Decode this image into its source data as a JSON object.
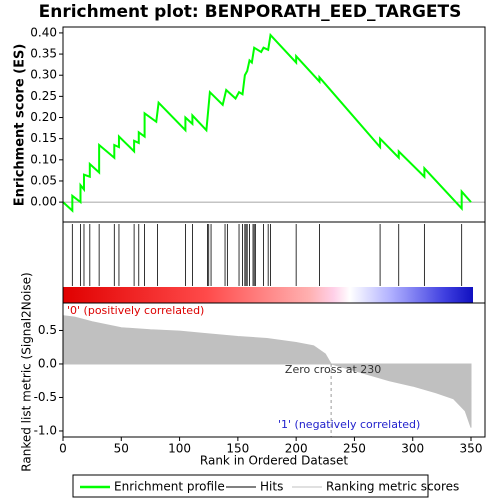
{
  "chart_data": [
    {
      "type": "line",
      "title": "Enrichment plot: BENPORATH_EED_TARGETS",
      "ylabel": "Enrichment score (ES)",
      "xlim": [
        0,
        362
      ],
      "ylim": [
        -0.047,
        0.414
      ],
      "yticks": [
        {
          "value": 0,
          "label": "0.00"
        },
        {
          "value": 0.05,
          "label": "0.05"
        },
        {
          "value": 0.1,
          "label": "0.10"
        },
        {
          "value": 0.15,
          "label": "0.15"
        },
        {
          "value": 0.2,
          "label": "0.20"
        },
        {
          "value": 0.25,
          "label": "0.25"
        },
        {
          "value": 0.3,
          "label": "0.30"
        },
        {
          "value": 0.35,
          "label": "0.35"
        },
        {
          "value": 0.4,
          "label": "0.40"
        }
      ],
      "series": [
        {
          "name": "Enrichment profile",
          "color": "#00ff00",
          "x": [
            0,
            8,
            8,
            15,
            15,
            18,
            18,
            23,
            23,
            31,
            31,
            44,
            44,
            48,
            48,
            61,
            61,
            65,
            65,
            70,
            70,
            80,
            82,
            105,
            105,
            111,
            111,
            123,
            126,
            137,
            140,
            148,
            151,
            154,
            156,
            158,
            160,
            162,
            164,
            170,
            172,
            176,
            178,
            200,
            200,
            220,
            220,
            272,
            272,
            288,
            288,
            310,
            310,
            342,
            342,
            350
          ],
          "values": [
            0,
            -0.02,
            0.015,
            0,
            0.04,
            0.03,
            0.065,
            0.06,
            0.09,
            0.07,
            0.135,
            0.105,
            0.135,
            0.13,
            0.155,
            0.12,
            0.145,
            0.14,
            0.165,
            0.155,
            0.21,
            0.19,
            0.235,
            0.17,
            0.2,
            0.185,
            0.205,
            0.17,
            0.26,
            0.23,
            0.265,
            0.245,
            0.26,
            0.255,
            0.3,
            0.31,
            0.335,
            0.33,
            0.365,
            0.355,
            0.365,
            0.36,
            0.395,
            0.33,
            0.345,
            0.285,
            0.295,
            0.13,
            0.15,
            0.105,
            0.12,
            0.06,
            0.08,
            -0.015,
            0.025,
            0
          ]
        },
        {
          "name": "Hits",
          "color": "#000000",
          "x": [
            8,
            15,
            18,
            23,
            31,
            44,
            48,
            61,
            65,
            70,
            81,
            105,
            111,
            124,
            125,
            127,
            139,
            141,
            151,
            154,
            156,
            157,
            158,
            160,
            163,
            164,
            165,
            172,
            176,
            178,
            200,
            220,
            272,
            288,
            310,
            342
          ]
        }
      ]
    },
    {
      "type": "area",
      "ylabel": "Ranked list metric (Signal2Noise)",
      "xlabel": "Rank in Ordered Dataset",
      "xlim": [
        0,
        362
      ],
      "ylim": [
        -1.09,
        0.91
      ],
      "xticks": [
        0,
        50,
        100,
        150,
        200,
        250,
        300,
        350
      ],
      "yticks": [
        {
          "value": 0.5,
          "label": "0.5"
        },
        {
          "value": 0,
          "label": "0.0"
        },
        {
          "value": -0.5,
          "label": "-0.5"
        },
        {
          "value": -1,
          "label": "-1.0"
        }
      ],
      "series": [
        {
          "name": "Ranking metric scores",
          "color": "#c0c0c0",
          "x": [
            0,
            10,
            25,
            50,
            75,
            100,
            125,
            150,
            175,
            200,
            215,
            225,
            230,
            240,
            260,
            280,
            300,
            320,
            335,
            345,
            350
          ],
          "values": [
            0.72,
            0.7,
            0.63,
            0.54,
            0.51,
            0.49,
            0.45,
            0.41,
            0.38,
            0.32,
            0.27,
            0.15,
            0,
            -0.05,
            -0.15,
            -0.25,
            -0.33,
            -0.43,
            -0.52,
            -0.7,
            -0.95
          ]
        }
      ],
      "zero_cross": 230,
      "annotations": [
        "'0' (positively correlated)",
        "Zero cross at 230",
        "'1' (negatively correlated)"
      ]
    }
  ]
}
